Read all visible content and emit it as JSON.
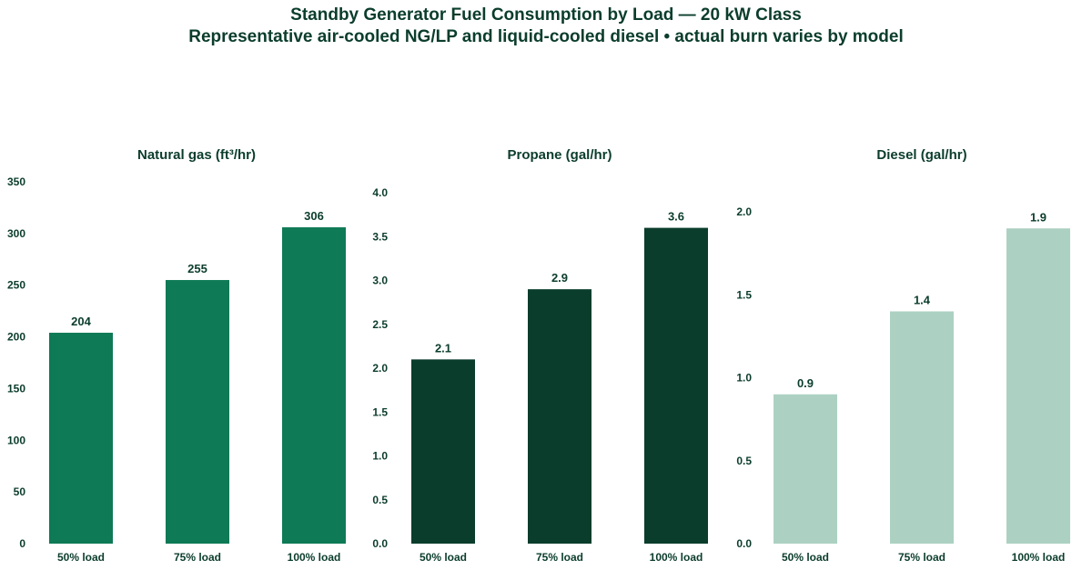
{
  "title": "Standby Generator Fuel Consumption by Load — 20 kW Class",
  "subtitle": "Representative air-cooled NG/LP and liquid-cooled diesel  •  actual burn varies by model",
  "chart_data": [
    {
      "type": "bar",
      "title": "Natural gas (ft³/hr)",
      "categories": [
        "50% load",
        "75% load",
        "100% load"
      ],
      "values": [
        204,
        255,
        306
      ],
      "value_labels": [
        "204",
        "255",
        "306"
      ],
      "ylim": [
        0,
        350
      ],
      "yticks": [
        0,
        50,
        100,
        150,
        200,
        250,
        300,
        350
      ],
      "ytick_labels": [
        "0",
        "50",
        "100",
        "150",
        "200",
        "250",
        "300",
        "350"
      ],
      "color": "#0e7a56",
      "grid": false
    },
    {
      "type": "bar",
      "title": "Propane (gal/hr)",
      "categories": [
        "50% load",
        "75% load",
        "100% load"
      ],
      "values": [
        2.1,
        2.9,
        3.6
      ],
      "value_labels": [
        "2.1",
        "2.9",
        "3.6"
      ],
      "ylim": [
        0,
        4.0
      ],
      "yticks": [
        0,
        0.5,
        1.0,
        1.5,
        2.0,
        2.5,
        3.0,
        3.5,
        4.0
      ],
      "ytick_labels": [
        "0.0",
        "0.5",
        "1.0",
        "1.5",
        "2.0",
        "2.5",
        "3.0",
        "3.5",
        "4.0"
      ],
      "color": "#0b3d2c",
      "grid": false
    },
    {
      "type": "bar",
      "title": "Diesel (gal/hr)",
      "categories": [
        "50% load",
        "75% load",
        "100% load"
      ],
      "values": [
        0.9,
        1.4,
        1.9
      ],
      "value_labels": [
        "0.9",
        "1.4",
        "1.9"
      ],
      "ylim": [
        0,
        2.0
      ],
      "yticks": [
        0,
        0.5,
        1.0,
        1.5,
        2.0
      ],
      "ytick_labels": [
        "0.0",
        "0.5",
        "1.0",
        "1.5",
        "2.0"
      ],
      "color": "#acd1c2",
      "grid": false
    }
  ]
}
